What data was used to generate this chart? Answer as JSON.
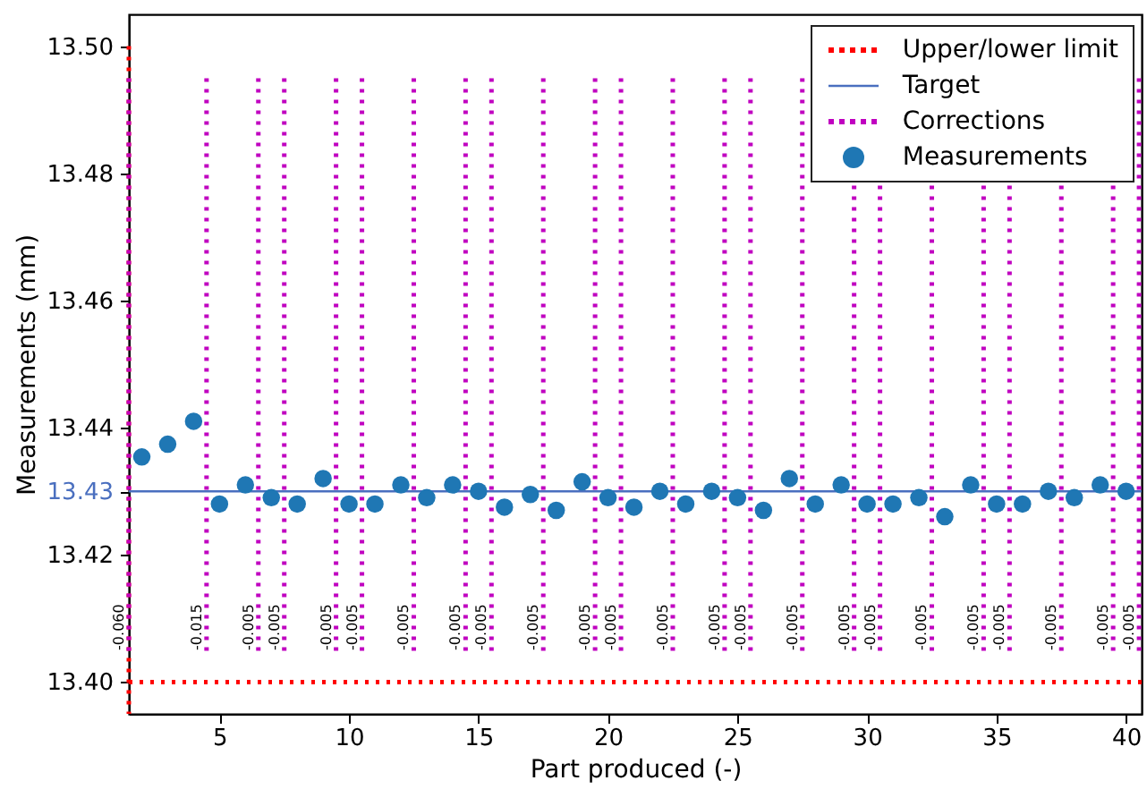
{
  "chart_data": {
    "type": "scatter",
    "xlabel": "Part produced (-)",
    "ylabel": "Measurements (mm)",
    "x": [
      2,
      3,
      4,
      5,
      6,
      7,
      8,
      9,
      10,
      11,
      12,
      13,
      14,
      15,
      16,
      17,
      18,
      19,
      20,
      21,
      22,
      23,
      24,
      25,
      26,
      27,
      28,
      29,
      30,
      31,
      32,
      33,
      34,
      35,
      36,
      37,
      38,
      39,
      40
    ],
    "series": [
      {
        "name": "Measurements",
        "color": "#1f77b4",
        "values": [
          13.4354,
          13.4374,
          13.441,
          13.428,
          13.431,
          13.429,
          13.428,
          13.432,
          13.428,
          13.428,
          13.431,
          13.429,
          13.431,
          13.43,
          13.4275,
          13.4295,
          13.427,
          13.4315,
          13.429,
          13.4275,
          13.43,
          13.428,
          13.43,
          13.429,
          13.427,
          13.432,
          13.428,
          13.431,
          13.428,
          13.428,
          13.429,
          13.426,
          13.431,
          13.428,
          13.428,
          13.43,
          13.429,
          13.431,
          13.43
        ]
      }
    ],
    "marker": "circle",
    "legend": "top right",
    "xlim": [
      1.5,
      40.6
    ],
    "xticks": [
      5,
      10,
      15,
      20,
      25,
      30,
      35,
      40
    ],
    "ylim": [
      13.395,
      13.505
    ],
    "yticks": [
      {
        "value": 13.4,
        "label": "13.40"
      },
      13.42,
      13.43,
      13.44,
      13.46,
      13.48,
      {
        "value": 13.5,
        "label": "13.50"
      }
    ],
    "ref_lines": [
      {
        "axis": "y",
        "value": 13.5,
        "label": "Upper/lower limit",
        "color": "#ff0000",
        "line_style": "dotted"
      },
      {
        "axis": "y",
        "value": 13.4,
        "color": "#ff0000",
        "line_style": "dotted"
      },
      {
        "axis": "y",
        "value": 13.43,
        "label": "Target",
        "color": "#4a6fbf",
        "line_style": "solid"
      },
      {
        "axis": "x",
        "value": 1.5,
        "color": "#c000c0",
        "line_style": "dotted"
      },
      {
        "axis": "x",
        "value": 4.5,
        "color": "#c000c0",
        "line_style": "dotted"
      },
      {
        "axis": "x",
        "value": 6.5,
        "color": "#c000c0",
        "line_style": "dotted"
      },
      {
        "axis": "x",
        "value": 7.5,
        "color": "#c000c0",
        "line_style": "dotted"
      },
      {
        "axis": "x",
        "value": 9.5,
        "color": "#c000c0",
        "line_style": "dotted"
      },
      {
        "axis": "x",
        "value": 10.5,
        "color": "#c000c0",
        "line_style": "dotted"
      },
      {
        "axis": "x",
        "value": 12.5,
        "color": "#c000c0",
        "line_style": "dotted"
      },
      {
        "axis": "x",
        "value": 14.5,
        "color": "#c000c0",
        "line_style": "dotted"
      },
      {
        "axis": "x",
        "value": 15.5,
        "color": "#c000c0",
        "line_style": "dotted"
      },
      {
        "axis": "x",
        "value": 17.5,
        "color": "#c000c0",
        "line_style": "dotted"
      },
      {
        "axis": "x",
        "value": 19.5,
        "color": "#c000c0",
        "line_style": "dotted"
      },
      {
        "axis": "x",
        "value": 20.5,
        "color": "#c000c0",
        "line_style": "dotted"
      },
      {
        "axis": "x",
        "value": 22.5,
        "color": "#c000c0",
        "line_style": "dotted"
      },
      {
        "axis": "x",
        "value": 24.5,
        "color": "#c000c0",
        "line_style": "dotted"
      },
      {
        "axis": "x",
        "value": 25.5,
        "color": "#c000c0",
        "line_style": "dotted"
      },
      {
        "axis": "x",
        "value": 27.5,
        "color": "#c000c0",
        "line_style": "dotted"
      },
      {
        "axis": "x",
        "value": 29.5,
        "color": "#c000c0",
        "line_style": "dotted"
      },
      {
        "axis": "x",
        "value": 30.5,
        "color": "#c000c0",
        "line_style": "dotted"
      },
      {
        "axis": "x",
        "value": 32.5,
        "color": "#c000c0",
        "line_style": "dotted"
      },
      {
        "axis": "x",
        "value": 34.5,
        "color": "#c000c0",
        "line_style": "dotted"
      },
      {
        "axis": "x",
        "value": 35.5,
        "color": "#c000c0",
        "line_style": "dotted"
      },
      {
        "axis": "x",
        "value": 37.5,
        "color": "#c000c0",
        "line_style": "dotted"
      },
      {
        "axis": "x",
        "value": 39.5,
        "color": "#c000c0",
        "line_style": "dotted"
      },
      {
        "axis": "x",
        "value": 40.5,
        "color": "#c000c0",
        "line_style": "dotted"
      }
    ],
    "annotations": [
      "Corrections",
      {
        "text": "-0.060",
        "x": 1.5,
        "y": 13.405
      },
      {
        "text": "-0.015",
        "x": 4.5,
        "y": 13.405
      },
      {
        "text": "-0.005",
        "x": 6.5,
        "y": 13.405
      },
      {
        "text": "-0.005",
        "x": 7.5,
        "y": 13.405
      },
      {
        "text": "-0.005",
        "x": 9.5,
        "y": 13.405
      },
      {
        "text": "-0.005",
        "x": 10.5,
        "y": 13.405
      },
      {
        "text": "-0.005",
        "x": 12.5,
        "y": 13.405
      },
      {
        "text": "-0.005",
        "x": 14.5,
        "y": 13.405
      },
      {
        "text": "-0.005",
        "x": 15.5,
        "y": 13.405
      },
      {
        "text": "-0.005",
        "x": 17.5,
        "y": 13.405
      },
      {
        "text": "-0.005",
        "x": 19.5,
        "y": 13.405
      },
      {
        "text": "-0.005",
        "x": 20.5,
        "y": 13.405
      },
      {
        "text": "-0.005",
        "x": 22.5,
        "y": 13.405
      },
      {
        "text": "-0.005",
        "x": 24.5,
        "y": 13.405
      },
      {
        "text": "-0.005",
        "x": 25.5,
        "y": 13.405
      },
      {
        "text": "-0.005",
        "x": 27.5,
        "y": 13.405
      },
      {
        "text": "-0.005",
        "x": 29.5,
        "y": 13.405
      },
      {
        "text": "-0.005",
        "x": 30.5,
        "y": 13.405
      },
      {
        "text": "-0.005",
        "x": 32.5,
        "y": 13.405
      },
      {
        "text": "-0.005",
        "x": 34.5,
        "y": 13.405
      },
      {
        "text": "-0.005",
        "x": 35.5,
        "y": 13.405
      },
      {
        "text": "-0.005",
        "x": 37.5,
        "y": 13.405
      },
      {
        "text": "-0.005",
        "x": 39.5,
        "y": 13.405
      },
      {
        "text": "-0.005",
        "x": 40.5,
        "y": 13.405
      }
    ]
  }
}
